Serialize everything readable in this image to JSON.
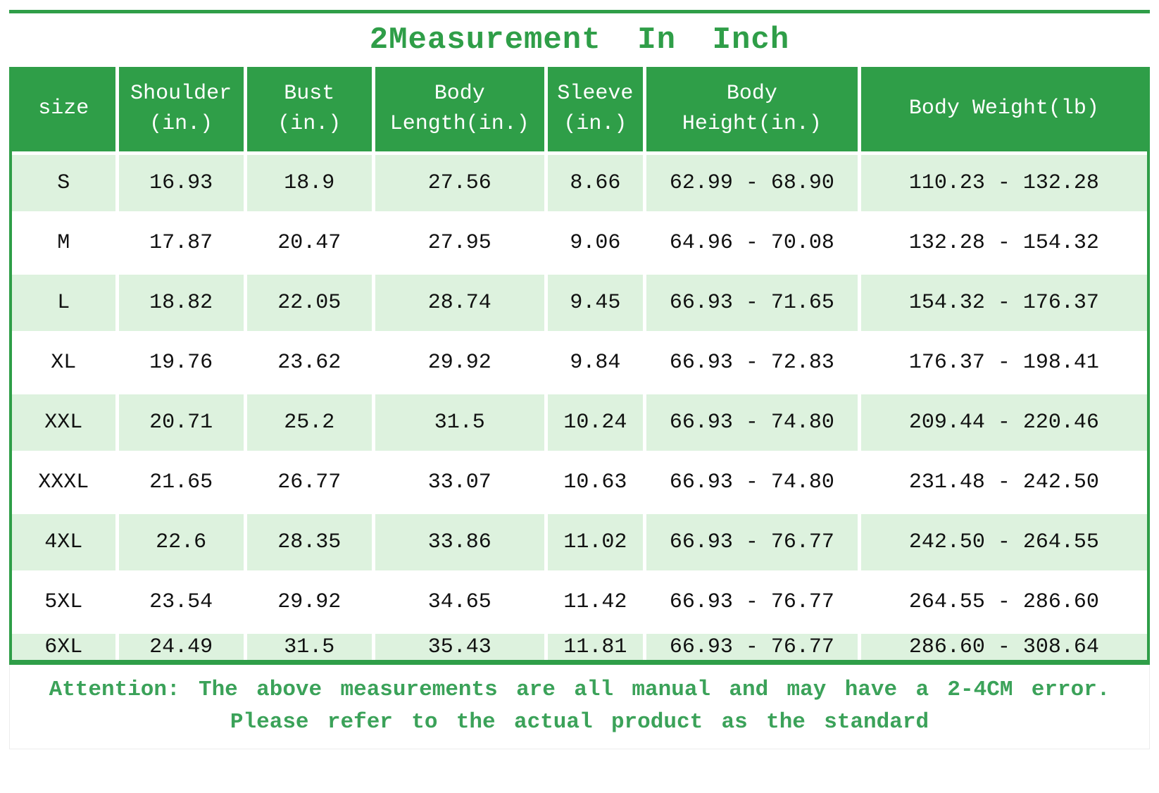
{
  "title": "2Measurement In Inch",
  "colors": {
    "header_green": "#2f9e48",
    "row_light_green": "#ddf2de",
    "note_text_green": "#3ba259",
    "cell_text": "#111111"
  },
  "table": {
    "columns": [
      {
        "key": "size",
        "lines": [
          "size"
        ]
      },
      {
        "key": "shoulder",
        "lines": [
          "Shoulder",
          "(in.)"
        ]
      },
      {
        "key": "bust",
        "lines": [
          "Bust",
          "(in.)"
        ]
      },
      {
        "key": "body-length",
        "lines": [
          "Body",
          "Length(in.)"
        ]
      },
      {
        "key": "sleeve",
        "lines": [
          "Sleeve",
          "(in.)"
        ]
      },
      {
        "key": "body-height",
        "lines": [
          "Body",
          "Height(in.)"
        ]
      },
      {
        "key": "body-weight",
        "lines": [
          "Body Weight(lb)"
        ]
      }
    ],
    "rows": [
      {
        "size": "S",
        "values": [
          "16.93",
          "18.9",
          "27.56",
          "8.66",
          "62.99 - 68.90",
          "110.23 - 132.28"
        ]
      },
      {
        "size": "M",
        "values": [
          "17.87",
          "20.47",
          "27.95",
          "9.06",
          "64.96 - 70.08",
          "132.28 - 154.32"
        ]
      },
      {
        "size": "L",
        "values": [
          "18.82",
          "22.05",
          "28.74",
          "9.45",
          "66.93 - 71.65",
          "154.32 - 176.37"
        ]
      },
      {
        "size": "XL",
        "values": [
          "19.76",
          "23.62",
          "29.92",
          "9.84",
          "66.93 - 72.83",
          "176.37 - 198.41"
        ]
      },
      {
        "size": "XXL",
        "values": [
          "20.71",
          "25.2",
          "31.5",
          "10.24",
          "66.93 - 74.80",
          "209.44 - 220.46"
        ]
      },
      {
        "size": "XXXL",
        "values": [
          "21.65",
          "26.77",
          "33.07",
          "10.63",
          "66.93 - 74.80",
          "231.48 - 242.50"
        ]
      },
      {
        "size": "4XL",
        "values": [
          "22.6",
          "28.35",
          "33.86",
          "11.02",
          "66.93 - 76.77",
          "242.50 - 264.55"
        ]
      },
      {
        "size": "5XL",
        "values": [
          "23.54",
          "29.92",
          "34.65",
          "11.42",
          "66.93 - 76.77",
          "264.55 - 286.60"
        ]
      },
      {
        "size": "6XL",
        "values": [
          "24.49",
          "31.5",
          "35.43",
          "11.81",
          "66.93 - 76.77",
          "286.60 - 308.64"
        ]
      }
    ]
  },
  "footer": {
    "line1": "Attention: The above measurements are all manual and may have a 2-4CM error.",
    "line2": "Please refer to the actual product as the standard"
  }
}
